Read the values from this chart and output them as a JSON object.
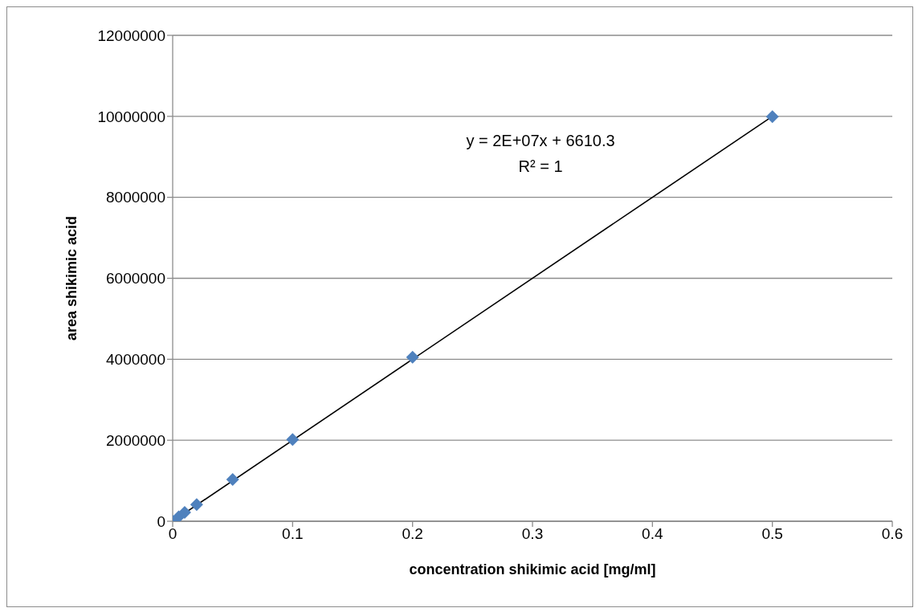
{
  "chart_data": {
    "type": "scatter",
    "xlabel": "concentration shikimic acid [mg/ml]",
    "ylabel": "area shikimic acid",
    "annotations": [
      "y = 2E+07x + 6610.3",
      "R² = 1"
    ],
    "series": [
      {
        "type": "line",
        "color": "#000000",
        "line_style": "solid",
        "x": [
          0,
          0.5
        ],
        "values": [
          0,
          10000000
        ]
      },
      {
        "color": "#4f81bd",
        "marker": "diamond",
        "x": [
          0,
          0.005,
          0.01,
          0.02,
          0.05,
          0.1,
          0.2,
          0.5
        ],
        "values": [
          0,
          110000,
          220000,
          410000,
          1030000,
          2020000,
          4050000,
          9990000
        ]
      }
    ],
    "xlim": [
      0,
      0.6
    ],
    "xticks": [
      0,
      0.1,
      0.2,
      0.3,
      0.4,
      0.5,
      0.6
    ],
    "ylim": [
      0,
      12000000
    ],
    "yticks": [
      0,
      2000000,
      4000000,
      6000000,
      8000000,
      10000000,
      12000000
    ],
    "grid": "y"
  }
}
